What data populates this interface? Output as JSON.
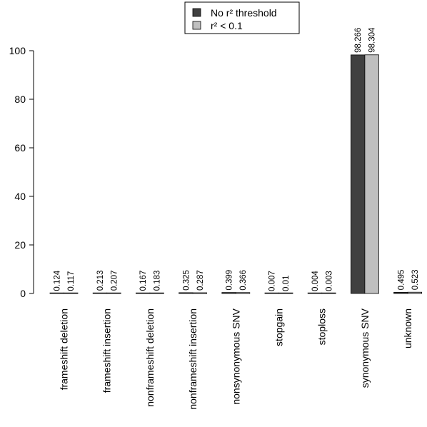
{
  "chart_data": {
    "type": "bar",
    "title": "",
    "xlabel": "",
    "ylabel": "",
    "ylim": [
      0,
      100
    ],
    "yticks": [
      0,
      20,
      40,
      60,
      80,
      100
    ],
    "categories": [
      "frameshift deletion",
      "frameshift insertion",
      "nonframeshift deletion",
      "nonframeshift insertion",
      "nonsynonymous SNV",
      "stopgain",
      "stoploss",
      "synonymous SNV",
      "unknown"
    ],
    "series": [
      {
        "name": "No r² threshold",
        "color": "#404040",
        "values": [
          0.124,
          0.213,
          0.167,
          0.325,
          0.399,
          0.007,
          0.004,
          98.266,
          0.495
        ],
        "labels": [
          "0.124",
          "0.213",
          "0.167",
          "0.325",
          "0.399",
          "0.007",
          "0.004",
          "98.266",
          "0.495"
        ]
      },
      {
        "name": "r² < 0.1",
        "color": "#bfbfbf",
        "values": [
          0.117,
          0.207,
          0.183,
          0.287,
          0.366,
          0.01,
          0.003,
          98.304,
          0.523
        ],
        "labels": [
          "0.117",
          "0.207",
          "0.183",
          "0.287",
          "0.366",
          "0.01",
          "0.003",
          "98.304",
          "0.523"
        ]
      }
    ],
    "legend_position": "top-center",
    "grid": false
  }
}
